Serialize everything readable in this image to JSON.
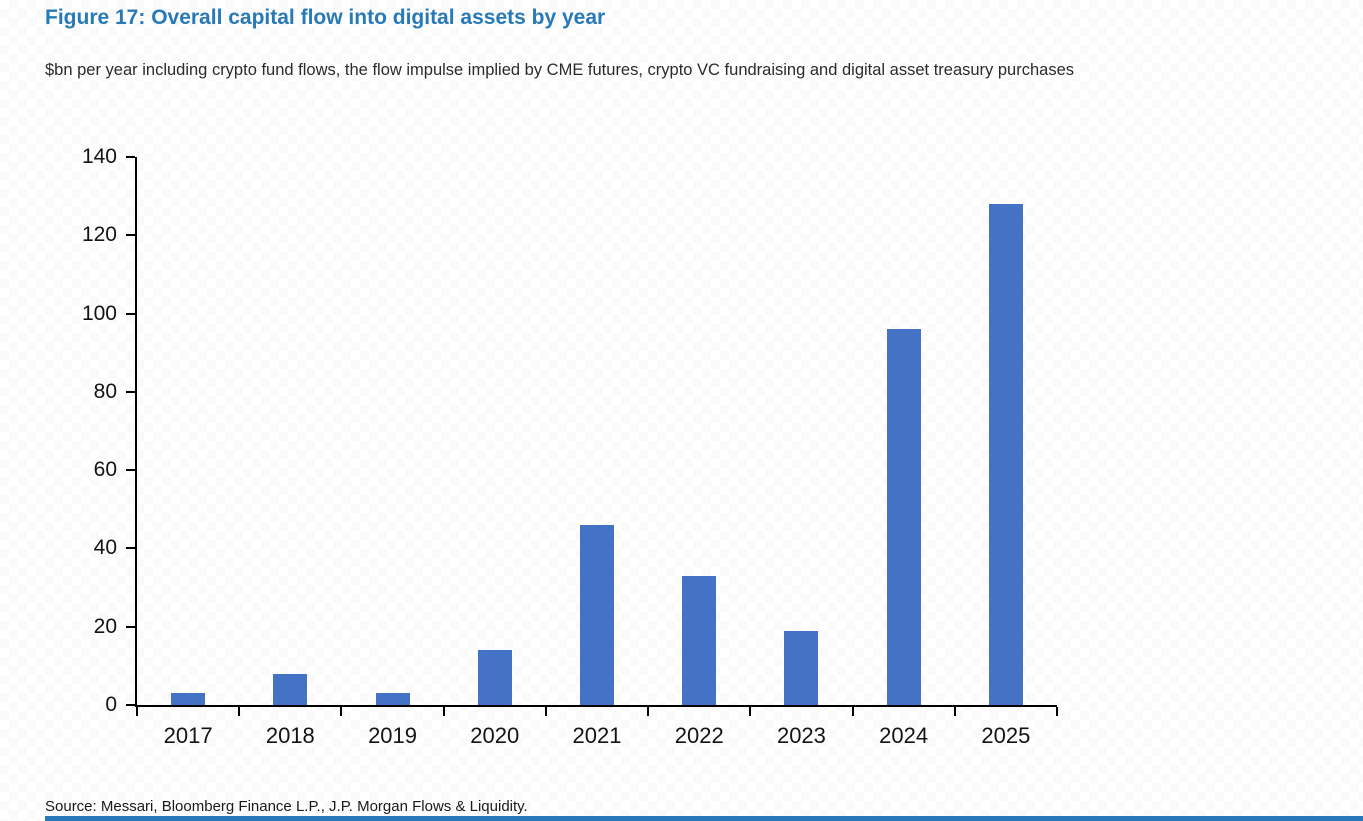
{
  "header": {
    "title": "Figure 17: Overall capital flow into digital assets by year",
    "subtitle": "$bn per year including crypto fund flows, the flow impulse implied by CME futures, crypto VC fundraising and digital asset treasury purchases"
  },
  "chart_data": {
    "type": "bar",
    "title": "Figure 17: Overall capital flow into digital assets by year",
    "categories": [
      "2017",
      "2018",
      "2019",
      "2020",
      "2021",
      "2022",
      "2023",
      "2024",
      "2025"
    ],
    "values": [
      3,
      8,
      3,
      14,
      46,
      33,
      19,
      96,
      128
    ],
    "xlabel": "",
    "ylabel": "",
    "ylim": [
      0,
      140
    ],
    "ytick_step": 20,
    "grid": false,
    "legend": "none",
    "bar_color": "#4472c4"
  },
  "footer": {
    "source": "Source: Messari, Bloomberg Finance L.P., J.P. Morgan Flows & Liquidity."
  },
  "colors": {
    "title_blue": "#2779b7",
    "bar_blue": "#4472c4",
    "accent_strip_blue": "#2779b7",
    "axis_black": "#000000"
  }
}
